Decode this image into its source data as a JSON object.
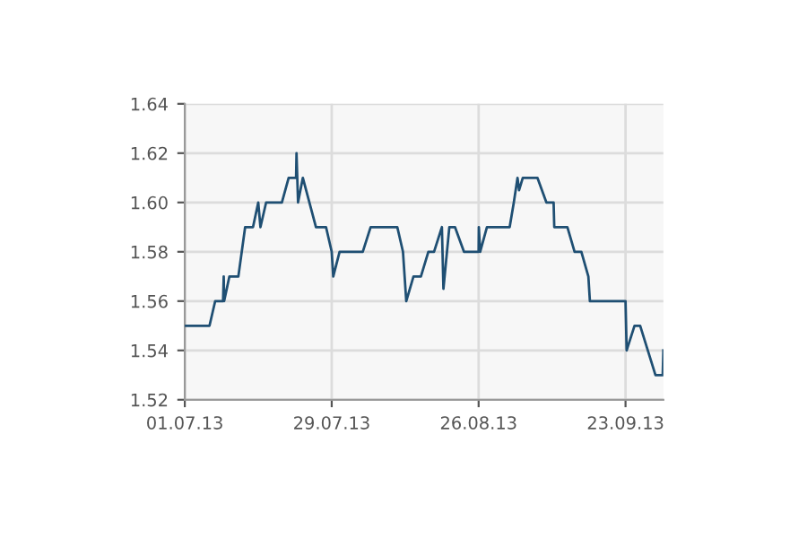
{
  "chart_data": {
    "type": "line",
    "color": "#1f4f73",
    "grid": true,
    "legend": false,
    "marker": "none",
    "line_style": "solid",
    "x": [
      "2013-07-01",
      "2013-07-05T17:00",
      "2013-07-06T19:00",
      "2013-07-08T07:00",
      "2013-07-08T10:00",
      "2013-07-08T12:00",
      "2013-07-09T12:00",
      "2013-07-11T05:00",
      "2013-07-12T12:00",
      "2013-07-14",
      "2013-07-15",
      "2013-07-15T10:00",
      "2013-07-16T12:00",
      "2013-07-19T12:00",
      "2013-07-20T19:00",
      "2013-07-22T05:00",
      "2013-07-22T07:00",
      "2013-07-22T14:00",
      "2013-07-23T12:00",
      "2013-07-26",
      "2013-07-27T22:00",
      "2013-07-29",
      "2013-07-29T07:00",
      "2013-07-30T12:00",
      "2013-08-03T22:00",
      "2013-08-05T10:00",
      "2013-08-10T12:00",
      "2013-08-11T14:00",
      "2013-08-12T05:00",
      "2013-08-13T14:00",
      "2013-08-15",
      "2013-08-16T10:00",
      "2013-08-17T12:00",
      "2013-08-19",
      "2013-08-19T07:00",
      "2013-08-20T10:00",
      "2013-08-21T12:00",
      "2013-08-23T05:00",
      "2013-08-26",
      "2013-08-26T01:00",
      "2013-08-26T07:00",
      "2013-08-27T14:00",
      "2013-08-31T22:00",
      "2013-09-01T17:00",
      "2013-09-02T10:00",
      "2013-09-02T17:00",
      "2013-09-03T10:00",
      "2013-09-06T05:00",
      "2013-09-07T22:00",
      "2013-09-09T07:00",
      "2013-09-09T10:00",
      "2013-09-11T22:00",
      "2013-09-13T07:00",
      "2013-09-14T14:00",
      "2013-09-15T22:00",
      "2013-09-16T05:00",
      "2013-09-23",
      "2013-09-23T05:00",
      "2013-09-24T17:00",
      "2013-09-25T19:00",
      "2013-09-28T17:00",
      "2013-09-30T02:00",
      "2013-09-30T05:00"
    ],
    "values": [
      1.55,
      1.55,
      1.56,
      1.56,
      1.57,
      1.56,
      1.57,
      1.57,
      1.59,
      1.59,
      1.6,
      1.59,
      1.6,
      1.6,
      1.61,
      1.61,
      1.62,
      1.6,
      1.61,
      1.59,
      1.59,
      1.58,
      1.57,
      1.58,
      1.58,
      1.59,
      1.59,
      1.58,
      1.56,
      1.57,
      1.57,
      1.58,
      1.58,
      1.59,
      1.565,
      1.59,
      1.59,
      1.58,
      1.58,
      1.59,
      1.58,
      1.59,
      1.59,
      1.6,
      1.61,
      1.605,
      1.61,
      1.61,
      1.6,
      1.6,
      1.59,
      1.59,
      1.58,
      1.58,
      1.57,
      1.56,
      1.56,
      1.54,
      1.55,
      1.55,
      1.53,
      1.53,
      1.54
    ],
    "xlim": [
      "2013-07-01",
      "2013-09-30T05:00"
    ],
    "xticks": [
      {
        "value": "2013-07-01",
        "label": "01.07.13"
      },
      {
        "value": "2013-07-29",
        "label": "29.07.13"
      },
      {
        "value": "2013-08-26",
        "label": "26.08.13"
      },
      {
        "value": "2013-09-23",
        "label": "23.09.13"
      }
    ],
    "ylim": [
      1.52,
      1.64
    ],
    "yticks": [
      {
        "value": 1.52,
        "label": "1.52"
      },
      {
        "value": 1.54,
        "label": "1.54"
      },
      {
        "value": 1.56,
        "label": "1.56"
      },
      {
        "value": 1.58,
        "label": "1.58"
      },
      {
        "value": 1.6,
        "label": "1.60"
      },
      {
        "value": 1.62,
        "label": "1.62"
      },
      {
        "value": 1.64,
        "label": "1.64"
      }
    ]
  }
}
